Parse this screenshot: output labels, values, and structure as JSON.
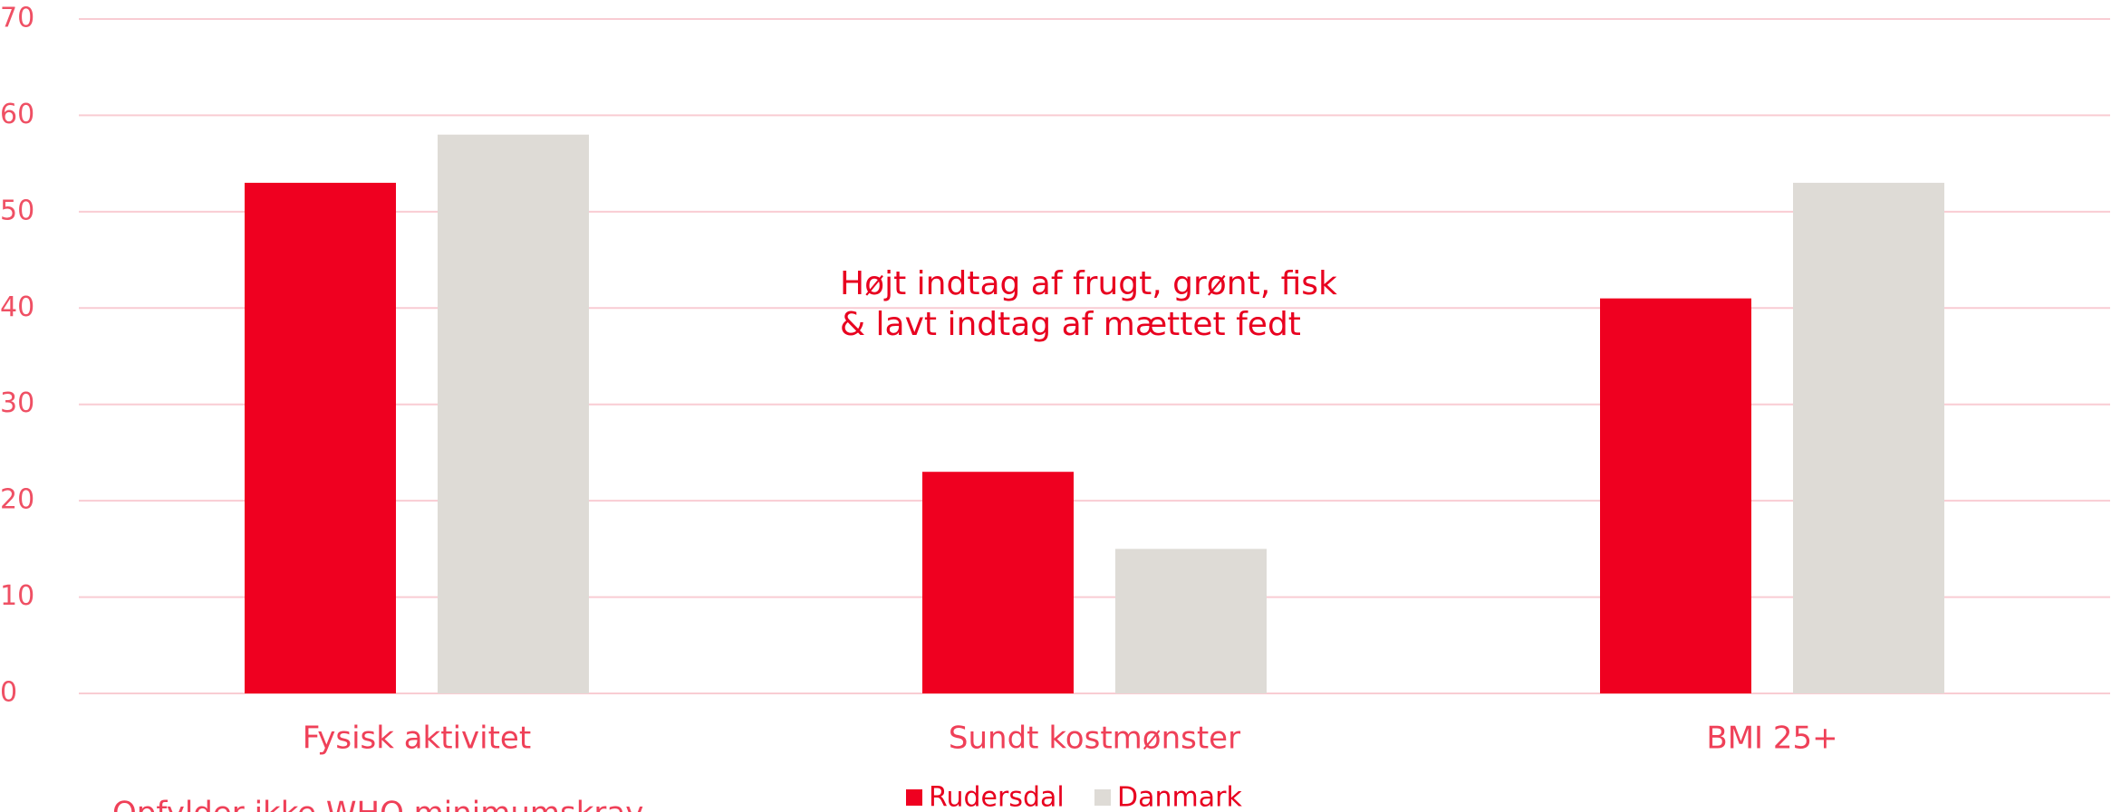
{
  "chart_data": {
    "type": "bar",
    "categories": [
      "Fysisk aktivitet",
      "Sundt kostmønster",
      "BMI 25+"
    ],
    "series": [
      {
        "name": "Rudersdal",
        "color": "#ef0020",
        "values": [
          53,
          23,
          41
        ]
      },
      {
        "name": "Danmark",
        "color": "#dedbd6",
        "values": [
          58,
          15,
          53
        ]
      }
    ],
    "ylim": [
      0,
      70
    ],
    "yticks": [
      0,
      10,
      20,
      30,
      40,
      50,
      60,
      70
    ],
    "grid": true,
    "annotations": [
      "Højt indtag af frugt, grønt, fisk",
      "& lavt indtag af mættet fedt"
    ],
    "subtitle": "Opfylder ikke WHO minimumskrav",
    "legend": "bottom"
  }
}
